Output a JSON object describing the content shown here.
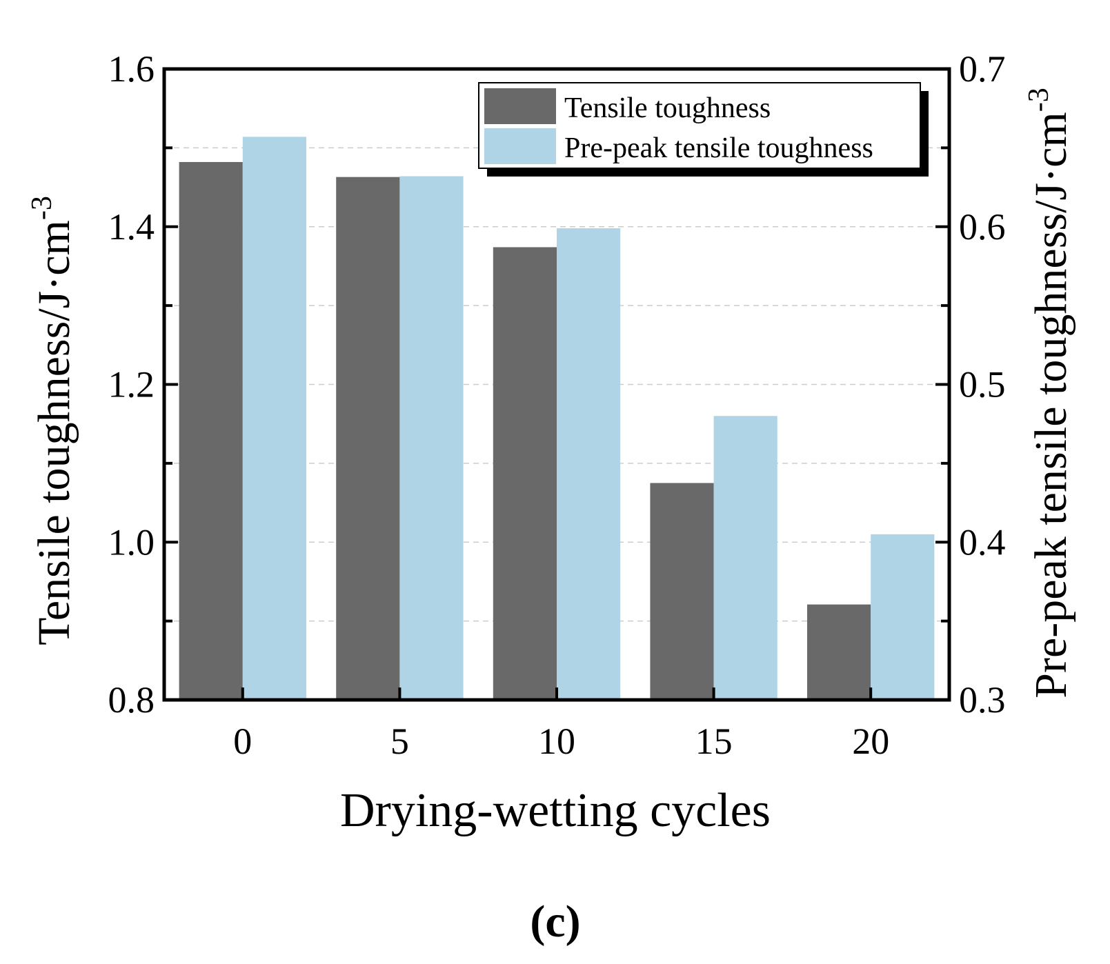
{
  "chart_data": {
    "type": "bar",
    "xlabel": "Drying-wetting cycles",
    "categories": [
      "0",
      "5",
      "10",
      "15",
      "20"
    ],
    "y_left": {
      "label_main": "Tensile toughness/J·cm",
      "label_sup": "-3",
      "ylim": [
        0.8,
        1.6
      ],
      "ticks": [
        "0.8",
        "1.0",
        "1.2",
        "1.4",
        "1.6"
      ]
    },
    "y_right": {
      "label_main": "Pre-peak tensile toughness/J·cm",
      "label_sup": "-3",
      "ylim": [
        0.3,
        0.7
      ],
      "ticks": [
        "0.3",
        "0.4",
        "0.5",
        "0.6",
        "0.7"
      ]
    },
    "series": [
      {
        "name": "Tensile toughness",
        "axis": "left",
        "color": "#696969",
        "values": [
          1.482,
          1.463,
          1.374,
          1.075,
          0.921
        ]
      },
      {
        "name": "Pre-peak tensile toughness",
        "axis": "right",
        "color": "#afd4e6",
        "values": [
          0.657,
          0.632,
          0.599,
          0.48,
          0.405
        ]
      }
    ],
    "grid": "horizontal dashed",
    "legend": "top-right"
  },
  "caption": "(c)"
}
